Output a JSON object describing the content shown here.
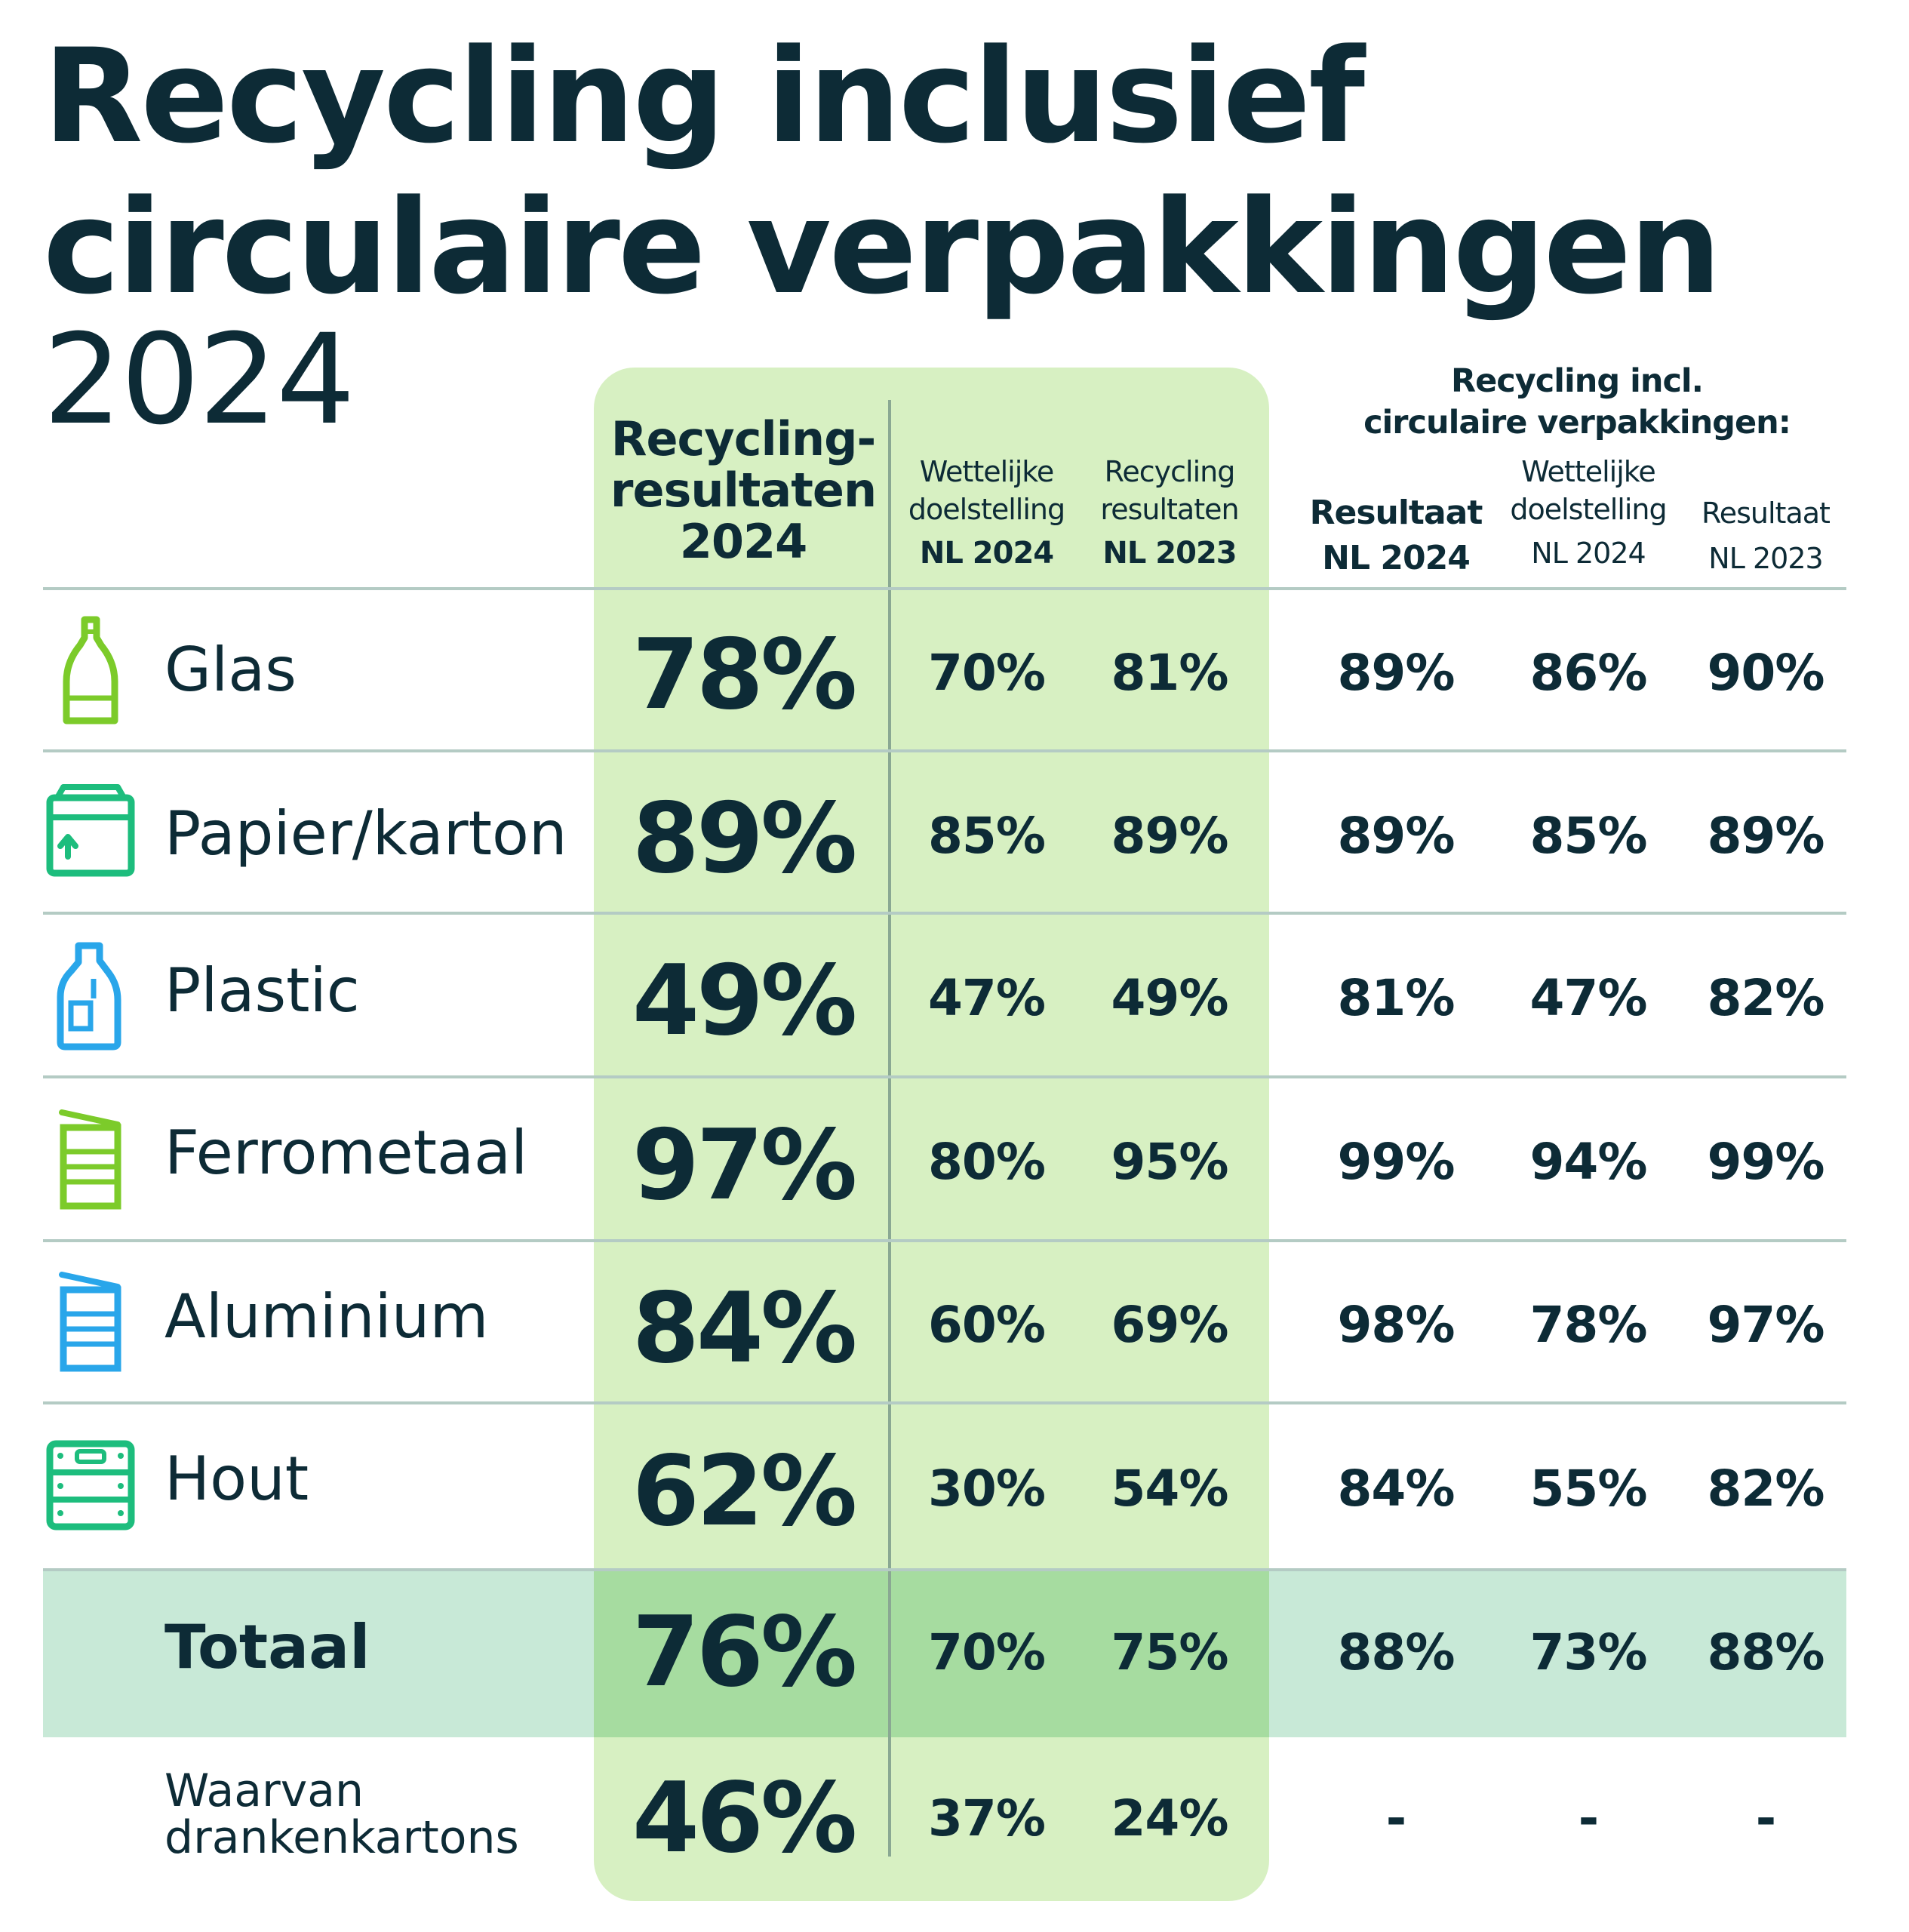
{
  "title": {
    "line1": "Recycling inclusief",
    "line2": "circulaire verpakkingen",
    "year": "2024"
  },
  "colors": {
    "panel": "#d7f0c2",
    "band": "#c8e9d7",
    "band_panel": "#a6dca0",
    "text": "#0d2b36",
    "icon_green": "#7ccb2a",
    "icon_teal": "#1dbd7d",
    "icon_blue": "#29a6ea"
  },
  "headers": {
    "main_line1": "Recycling-",
    "main_line2": "resultaten",
    "main_line3": "2024",
    "col1_line1": "Wettelijke",
    "col1_line2": "doelstelling",
    "col1_line3": "NL 2024",
    "col2_line1": "Recycling",
    "col2_line2": "resultaten",
    "col2_line3": "NL 2023",
    "group_line1": "Recycling incl.",
    "group_line2": "circulaire verpakkingen:",
    "col3_line1": "Resultaat",
    "col3_line2": "NL 2024",
    "col4_line1": "Wettelijke",
    "col4_line2": "doelstelling",
    "col4_line3": "NL 2024",
    "col5_line1": "Resultaat",
    "col5_line2": "NL 2023"
  },
  "chart_data": {
    "type": "table",
    "title": "Recycling inclusief circulaire verpakkingen 2024",
    "columns": [
      "Recycling-resultaten 2024",
      "Wettelijke doelstelling NL 2024",
      "Recycling resultaten NL 2023",
      "Recycling incl. circulaire verpakkingen: Resultaat NL 2024",
      "Recycling incl. circulaire verpakkingen: Wettelijke doelstelling NL 2024",
      "Recycling incl. circulaire verpakkingen: Resultaat NL 2023"
    ],
    "rows": [
      {
        "label": "Glas",
        "icon": "bottle-icon",
        "values": [
          "78%",
          "70%",
          "81%",
          "89%",
          "86%",
          "90%"
        ]
      },
      {
        "label": "Papier/karton",
        "icon": "box-icon",
        "values": [
          "89%",
          "85%",
          "89%",
          "89%",
          "85%",
          "89%"
        ]
      },
      {
        "label": "Plastic",
        "icon": "plastic-bottle-icon",
        "values": [
          "49%",
          "47%",
          "49%",
          "81%",
          "47%",
          "82%"
        ]
      },
      {
        "label": "Ferrometaal",
        "icon": "tin-can-icon",
        "values": [
          "97%",
          "80%",
          "95%",
          "99%",
          "94%",
          "99%"
        ]
      },
      {
        "label": "Aluminium",
        "icon": "aluminium-can-icon",
        "values": [
          "84%",
          "60%",
          "69%",
          "98%",
          "78%",
          "97%"
        ]
      },
      {
        "label": "Hout",
        "icon": "crate-icon",
        "values": [
          "62%",
          "30%",
          "54%",
          "84%",
          "55%",
          "82%"
        ]
      },
      {
        "label": "Totaal",
        "icon": "",
        "values": [
          "76%",
          "70%",
          "75%",
          "88%",
          "73%",
          "88%"
        ]
      },
      {
        "label_line1": "Waarvan",
        "label_line2": "drankenkartons",
        "icon": "",
        "values": [
          "46%",
          "37%",
          "24%",
          "-",
          "-",
          "-"
        ]
      }
    ]
  }
}
